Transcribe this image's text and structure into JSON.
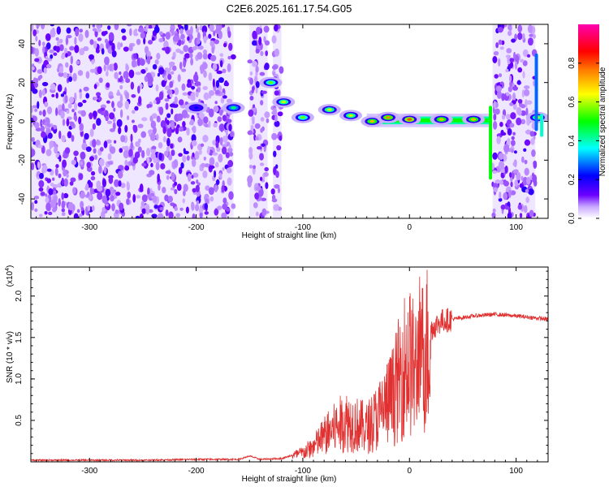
{
  "title": "C2E6.2025.161.17.54.G05",
  "chart_data": [
    {
      "type": "heatmap",
      "xlabel": "Height of straight line (km)",
      "ylabel": "Frequency (Hz)",
      "xlim": [
        -355,
        130
      ],
      "ylim": [
        -50,
        50
      ],
      "xticks": [
        -300,
        -200,
        -100,
        0,
        100
      ],
      "yticks": [
        -40,
        -20,
        0,
        20,
        40
      ],
      "colorbar": {
        "label": "Normalized spectral amplitude",
        "range": [
          0,
          1
        ],
        "ticks": [
          "0.0",
          "0.2",
          "0.4",
          "0.6",
          "0.8"
        ],
        "colors": [
          "#ffffff",
          "#6b00ff",
          "#0000ff",
          "#00ffff",
          "#00ff00",
          "#ffff00",
          "#ff8000",
          "#ff0000",
          "#ff00b0"
        ]
      },
      "noise_regions_km": [
        [
          -355,
          -165
        ],
        [
          -150,
          -133
        ],
        [
          -128,
          -120
        ],
        [
          78,
          118
        ]
      ],
      "features": [
        {
          "x": -200,
          "y": 7,
          "amp": 0.25
        },
        {
          "x": -165,
          "y": 7,
          "amp": 0.45
        },
        {
          "x": -130,
          "y": 20,
          "amp": 0.55
        },
        {
          "x": -118,
          "y": 10,
          "amp": 0.6
        },
        {
          "x": -100,
          "y": 2,
          "amp": 0.55
        },
        {
          "x": -75,
          "y": 6,
          "amp": 0.6
        },
        {
          "x": -55,
          "y": 3,
          "amp": 0.6
        },
        {
          "x": -35,
          "y": 0,
          "amp": 0.7
        },
        {
          "x": -20,
          "y": 2,
          "amp": 0.75
        },
        {
          "x": 0,
          "y": 1,
          "amp": 0.8
        },
        {
          "x": 30,
          "y": 1,
          "amp": 0.7
        },
        {
          "x": 60,
          "y": 1,
          "amp": 0.7
        },
        {
          "x": 120,
          "y": 2,
          "amp": 0.6
        }
      ]
    },
    {
      "type": "line",
      "xlabel": "Height of straight line (km)",
      "ylabel": "SNR (10 * v/v)",
      "yscale_label": "(x10",
      "yscale_exp": "4",
      "xlim": [
        -355,
        130
      ],
      "ylim": [
        0,
        2.35
      ],
      "xticks": [
        -300,
        -200,
        -100,
        0,
        100
      ],
      "yticks": [
        "0.5",
        "1.0",
        "1.5",
        "2.0"
      ],
      "color": "#e03030",
      "series": [
        {
          "x": [
            -355,
            -300,
            -250,
            -200,
            -160,
            -150,
            -140,
            -120,
            -100,
            -90,
            -80,
            -70,
            -60,
            -50,
            -40,
            -30,
            -20,
            -15,
            -10,
            -5,
            0,
            5,
            10,
            15,
            20,
            30,
            40,
            60,
            80,
            100,
            130
          ],
          "y": [
            0.02,
            0.02,
            0.02,
            0.03,
            0.03,
            0.07,
            0.03,
            0.04,
            0.12,
            0.2,
            0.35,
            0.45,
            0.55,
            0.5,
            0.45,
            0.6,
            0.8,
            0.9,
            1.1,
            1.3,
            1.35,
            1.2,
            1.3,
            1.5,
            1.6,
            1.7,
            1.72,
            1.76,
            1.78,
            1.76,
            1.72
          ]
        }
      ]
    }
  ]
}
